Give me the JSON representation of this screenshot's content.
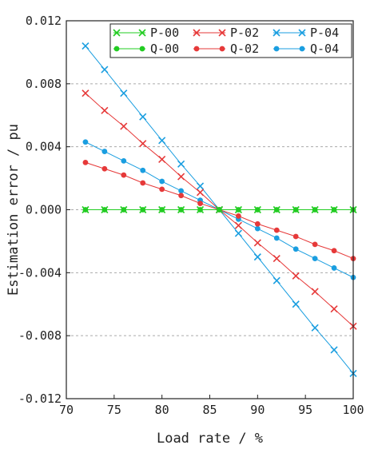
{
  "chart_data": {
    "type": "line",
    "title": "",
    "xlabel": "Load rate / %",
    "ylabel": "Estimation error / pu",
    "xlim": [
      70,
      100
    ],
    "ylim": [
      -0.012,
      0.012
    ],
    "x_ticks": [
      70,
      75,
      80,
      85,
      90,
      95,
      100
    ],
    "x_tick_labels": [
      "70",
      "75",
      "80",
      "85",
      "90",
      "95",
      "100"
    ],
    "y_ticks": [
      0.012,
      0.008,
      0.004,
      0.0,
      -0.004,
      -0.008,
      -0.012
    ],
    "y_tick_labels": [
      "0.012",
      "0.008",
      "0.004",
      "0.000",
      "-0.004",
      "-0.008",
      "-0.012"
    ],
    "grid": "horizontal dashed",
    "legend_position": "top-right",
    "x": [
      72,
      74,
      76,
      78,
      80,
      82,
      84,
      86,
      88,
      90,
      92,
      94,
      96,
      98,
      100
    ],
    "series": [
      {
        "name": "P-00",
        "marker": "x",
        "color": "#22cc22",
        "values": [
          0,
          0,
          0,
          0,
          0,
          0,
          0,
          0,
          0,
          0,
          0,
          0,
          0,
          0,
          0
        ]
      },
      {
        "name": "Q-00",
        "marker": "dot",
        "color": "#22cc22",
        "values": [
          0,
          0,
          0,
          0,
          0,
          0,
          0,
          0,
          0,
          0,
          0,
          0,
          0,
          0,
          0
        ]
      },
      {
        "name": "P-02",
        "marker": "x",
        "color": "#e63939",
        "values": [
          0.0074,
          0.0063,
          0.0053,
          0.0042,
          0.0032,
          0.0021,
          0.0011,
          0,
          -0.001,
          -0.0021,
          -0.0031,
          -0.0042,
          -0.0052,
          -0.0063,
          -0.0074
        ]
      },
      {
        "name": "Q-02",
        "marker": "dot",
        "color": "#e63939",
        "values": [
          0.003,
          0.0026,
          0.0022,
          0.0017,
          0.0013,
          0.0009,
          0.0004,
          0,
          -0.0004,
          -0.0009,
          -0.0013,
          -0.0017,
          -0.0022,
          -0.0026,
          -0.0031
        ]
      },
      {
        "name": "P-04",
        "marker": "x",
        "color": "#1a9ee0",
        "values": [
          0.0104,
          0.0089,
          0.0074,
          0.0059,
          0.0044,
          0.0029,
          0.0015,
          0,
          -0.0015,
          -0.003,
          -0.0045,
          -0.006,
          -0.0075,
          -0.0089,
          -0.0104
        ]
      },
      {
        "name": "Q-04",
        "marker": "dot",
        "color": "#1a9ee0",
        "values": [
          0.0043,
          0.0037,
          0.0031,
          0.0025,
          0.0018,
          0.0012,
          0.0006,
          0,
          -0.0006,
          -0.0012,
          -0.0018,
          -0.0025,
          -0.0031,
          -0.0037,
          -0.0043
        ]
      }
    ],
    "legend_order": [
      "P-00",
      "P-02",
      "P-04",
      "Q-00",
      "Q-02",
      "Q-04"
    ]
  }
}
